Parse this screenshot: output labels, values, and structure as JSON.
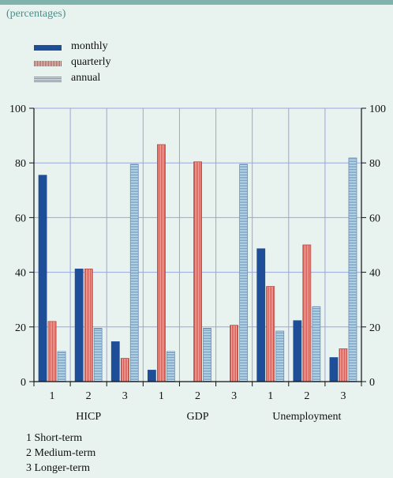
{
  "subtitle": "(percentages)",
  "colors": {
    "monthly": "#1f4e99",
    "quarterly": "#e0827a",
    "annual": "#a9c6d8",
    "grid": "#9aa6e0",
    "background": "#e8f2ef",
    "accent": "#7fb3ac"
  },
  "notes": [
    "1 Short-term",
    "2 Medium-term",
    "3 Longer-term"
  ],
  "chart_data": {
    "type": "bar",
    "groups": [
      "HICP",
      "GDP",
      "Unemployment"
    ],
    "categories": [
      "1",
      "2",
      "3",
      "1",
      "2",
      "3",
      "1",
      "2",
      "3"
    ],
    "series": [
      {
        "name": "monthly",
        "values": [
          75.5,
          41.2,
          14.6,
          4.2,
          0,
          0,
          48.6,
          22.3,
          8.8
        ]
      },
      {
        "name": "quarterly",
        "values": [
          22.0,
          41.2,
          8.5,
          86.7,
          80.4,
          20.6,
          34.8,
          50.0,
          12.0
        ]
      },
      {
        "name": "annual",
        "values": [
          11.0,
          19.5,
          79.5,
          11.0,
          19.5,
          79.5,
          18.5,
          27.4,
          81.8
        ]
      }
    ],
    "ylim": [
      0,
      100
    ],
    "yticks": [
      0,
      20,
      40,
      60,
      80,
      100
    ],
    "grid": true,
    "legend": "top-left"
  }
}
